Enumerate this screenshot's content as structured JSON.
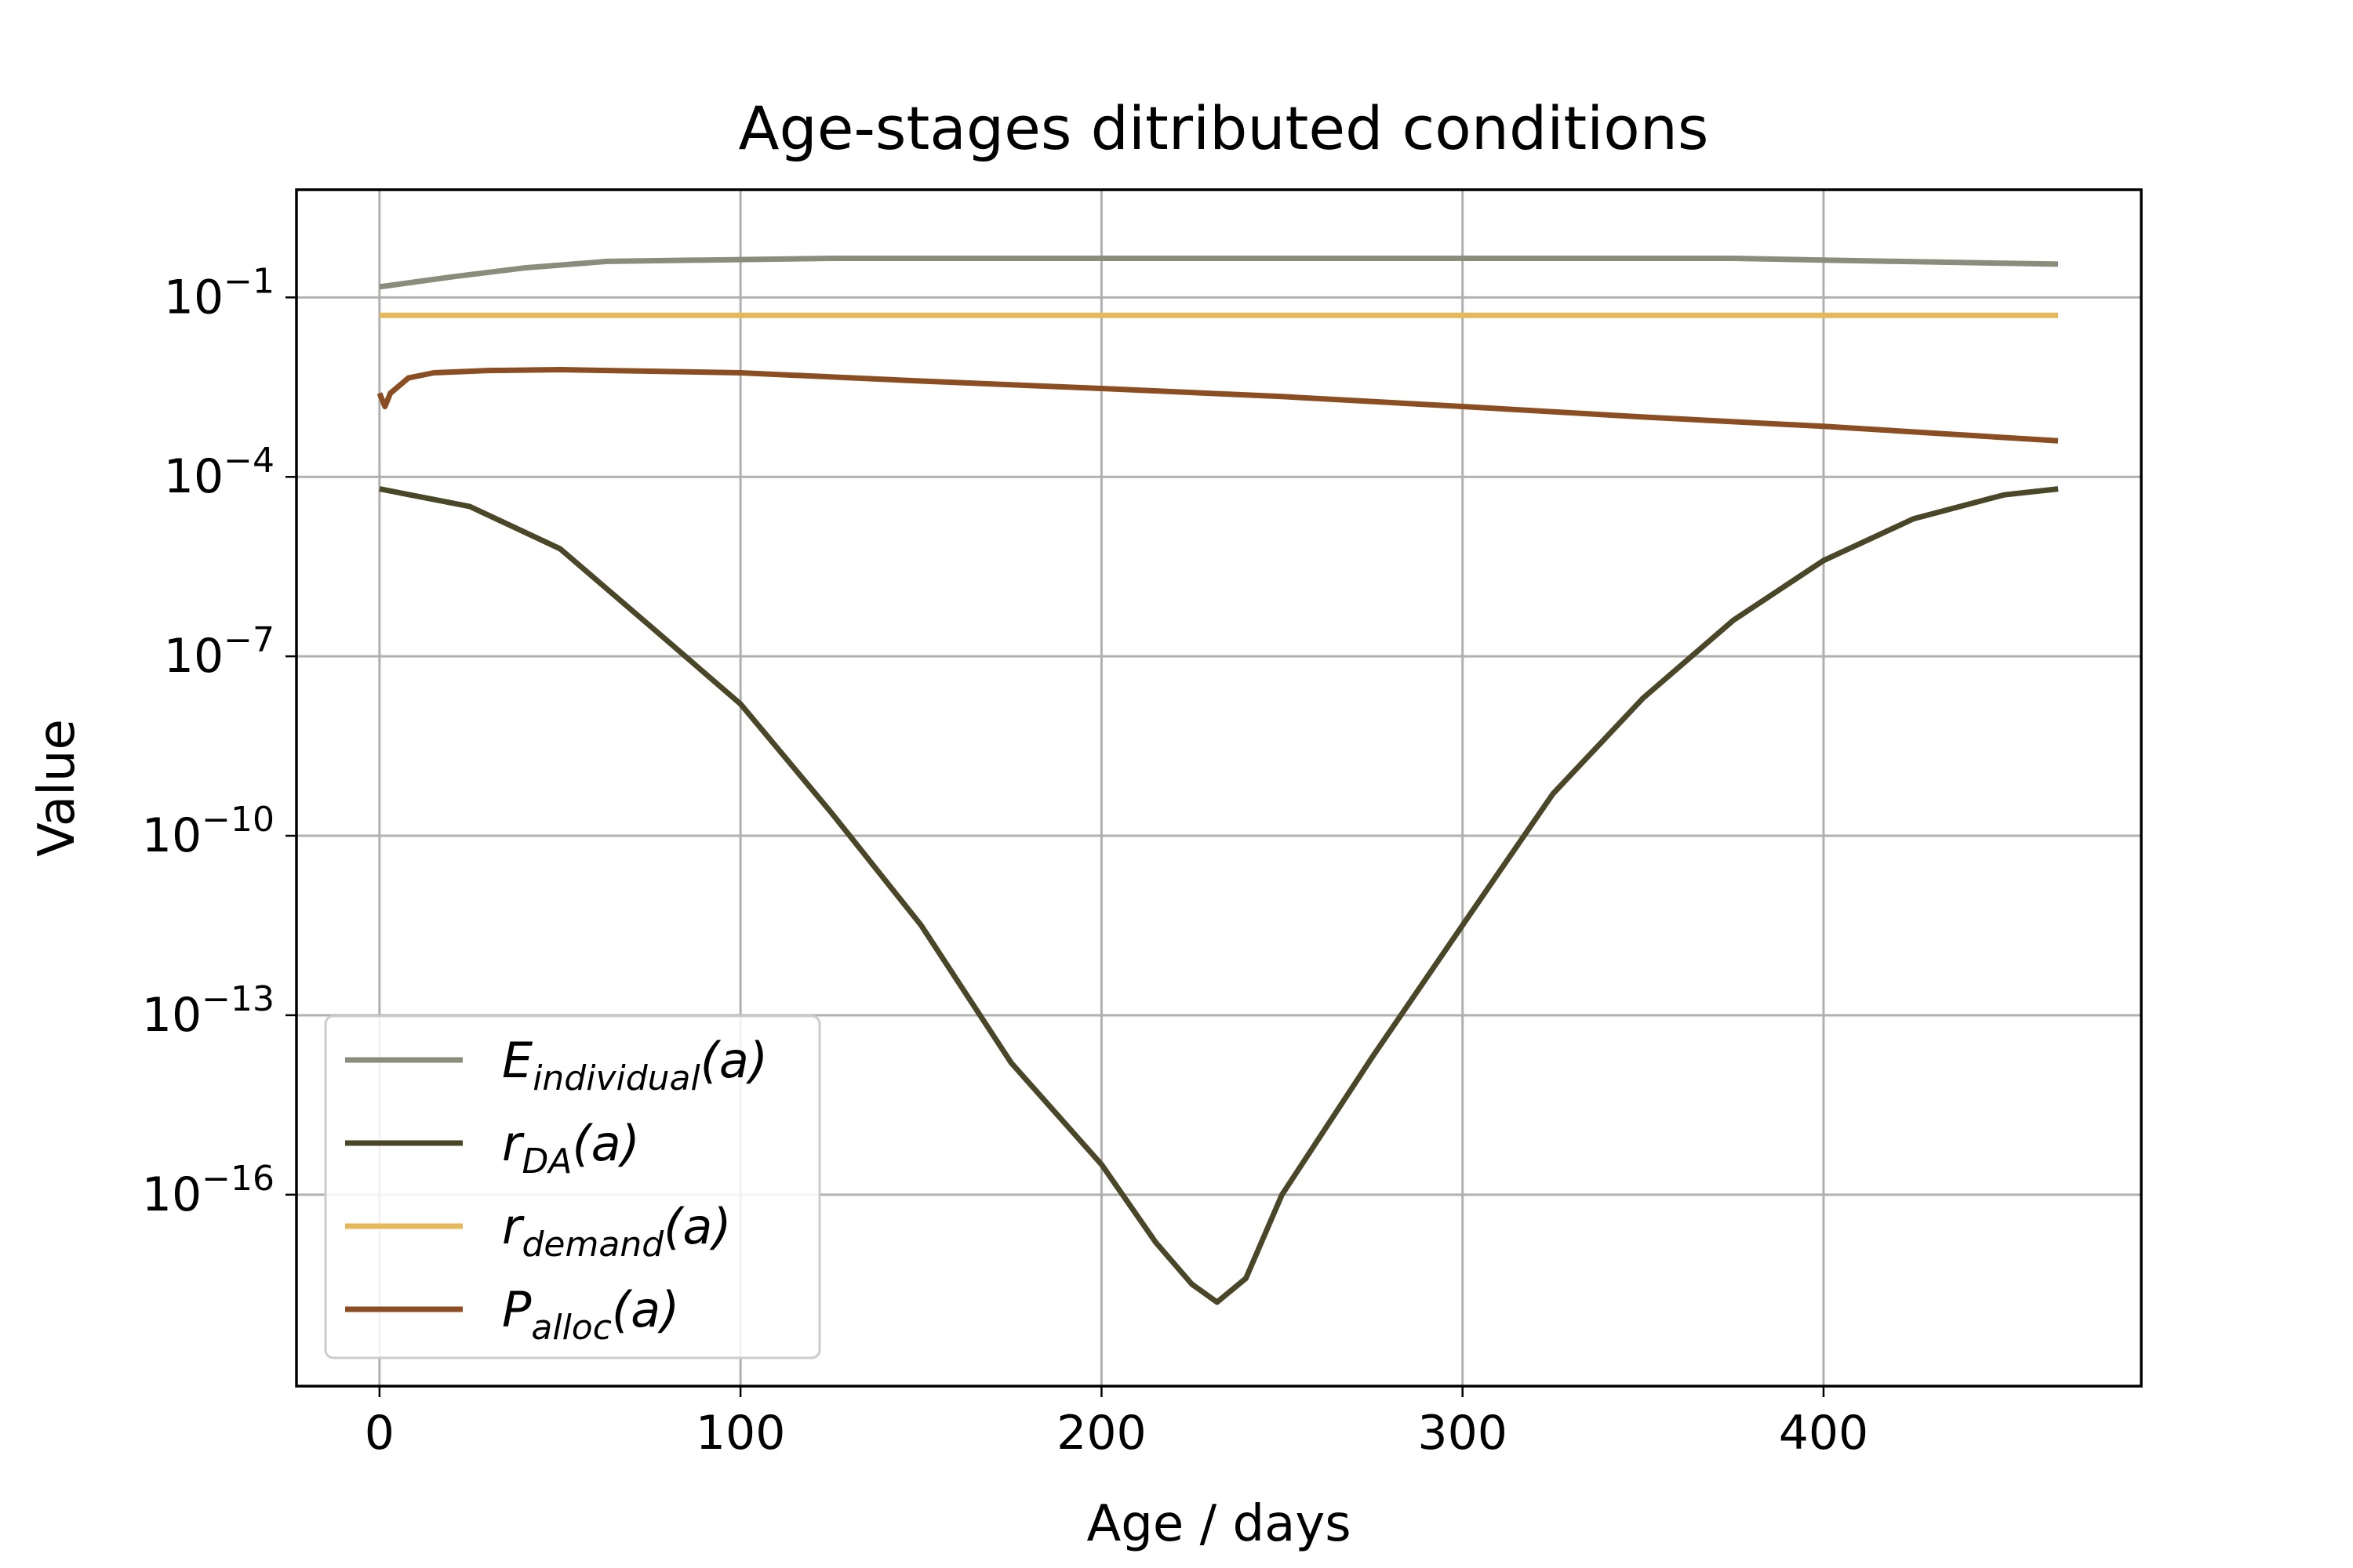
{
  "chart_data": {
    "type": "line",
    "title": "Age-stages ditributed conditions",
    "xlabel": "Age / days",
    "ylabel": "Value",
    "xlim": [
      -23,
      488
    ],
    "ylim_exponent": [
      -19.2,
      0.8
    ],
    "yscale": "log",
    "grid": true,
    "legend_position": "lower-left",
    "x_ticks": [
      0,
      100,
      200,
      300,
      400
    ],
    "x_tick_labels": [
      "0",
      "100",
      "200",
      "300",
      "400"
    ],
    "y_ticks_exponent": [
      -16,
      -13,
      -10,
      -7,
      -4,
      -1
    ],
    "y_tick_labels": [
      {
        "base": "10",
        "exp": "−16"
      },
      {
        "base": "10",
        "exp": "−13"
      },
      {
        "base": "10",
        "exp": "−10"
      },
      {
        "base": "10",
        "exp": "−7"
      },
      {
        "base": "10",
        "exp": "−4"
      },
      {
        "base": "10",
        "exp": "−1"
      }
    ],
    "series": [
      {
        "name": "E_individual(a)",
        "legend_main": "E",
        "legend_sub": "individual",
        "legend_suffix": "(a)",
        "color": "#8a8c7c",
        "x": [
          0,
          20,
          40,
          63,
          125,
          200,
          300,
          375,
          400,
          465
        ],
        "y": [
          0.15,
          0.22,
          0.31,
          0.4,
          0.45,
          0.45,
          0.45,
          0.45,
          0.42,
          0.36
        ]
      },
      {
        "name": "r_DA(a)",
        "legend_main": "r",
        "legend_sub": "DA",
        "legend_suffix": "(a)",
        "color": "#4a4628",
        "x": [
          0,
          25,
          50,
          75,
          100,
          125,
          150,
          175,
          200,
          215,
          225,
          232,
          240,
          250,
          275,
          300,
          325,
          350,
          375,
          400,
          425,
          450,
          465
        ],
        "y": [
          6.3e-05,
          3.2e-05,
          6.3e-06,
          3.2e-07,
          1.6e-08,
          2.5e-10,
          3.2e-12,
          1.6e-14,
          3.2e-16,
          1.6e-17,
          3.2e-18,
          1.6e-18,
          4e-18,
          1e-16,
          2e-14,
          3.2e-12,
          5e-10,
          2e-08,
          4e-07,
          4e-06,
          2e-05,
          5e-05,
          6.3e-05
        ]
      },
      {
        "name": "r_demand(a)",
        "legend_main": "r",
        "legend_sub": "demand",
        "legend_suffix": "(a)",
        "color": "#e6b85c",
        "x": [
          0,
          465
        ],
        "y": [
          0.05,
          0.05
        ]
      },
      {
        "name": "P_alloc(a)",
        "legend_main": "P",
        "legend_sub": "alloc",
        "legend_suffix": "(a)",
        "color": "#8b4e22",
        "x": [
          0,
          1.5,
          3,
          8,
          15,
          30,
          50,
          100,
          150,
          200,
          250,
          300,
          350,
          400,
          465
        ],
        "y": [
          0.0025,
          0.0015,
          0.0025,
          0.0045,
          0.0055,
          0.006,
          0.0062,
          0.0055,
          0.004,
          0.003,
          0.0022,
          0.0015,
          0.001,
          0.0007,
          0.0004
        ]
      }
    ]
  }
}
